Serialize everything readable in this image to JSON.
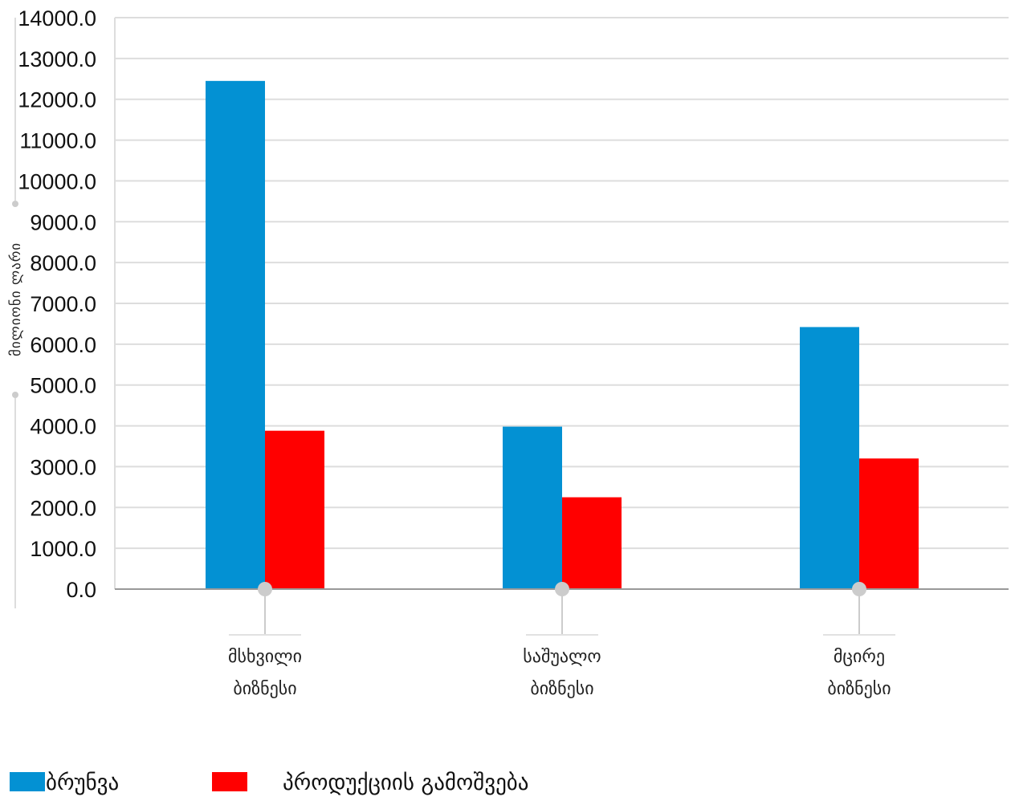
{
  "chart_data": {
    "type": "bar",
    "ylabel": "მილიონი ლარი",
    "ylim": [
      0,
      14000
    ],
    "ytick_step": 1000,
    "ytick_labels": [
      "0.0",
      "1000.0",
      "2000.0",
      "3000.0",
      "4000.0",
      "5000.0",
      "6000.0",
      "7000.0",
      "8000.0",
      "9000.0",
      "10000.0",
      "11000.0",
      "12000.0",
      "13000.0",
      "14000.0"
    ],
    "categories": [
      [
        "მსხვილი",
        "ბიზნესი"
      ],
      [
        "საშუალო",
        "ბიზნესი"
      ],
      [
        "მცირე",
        "ბიზნესი"
      ]
    ],
    "series": [
      {
        "name": "ბრუნვა",
        "color": "#0391d3",
        "values": [
          12450,
          3980,
          6420
        ]
      },
      {
        "name": "პროდუქციის გამოშვება",
        "color": "#ff0000",
        "values": [
          3880,
          2250,
          3200
        ]
      }
    ],
    "grid": true,
    "legend_position": "bottom-left",
    "colors": {
      "grid": "#dddddd",
      "axis": "#999999",
      "marker": "#cccccc"
    }
  }
}
